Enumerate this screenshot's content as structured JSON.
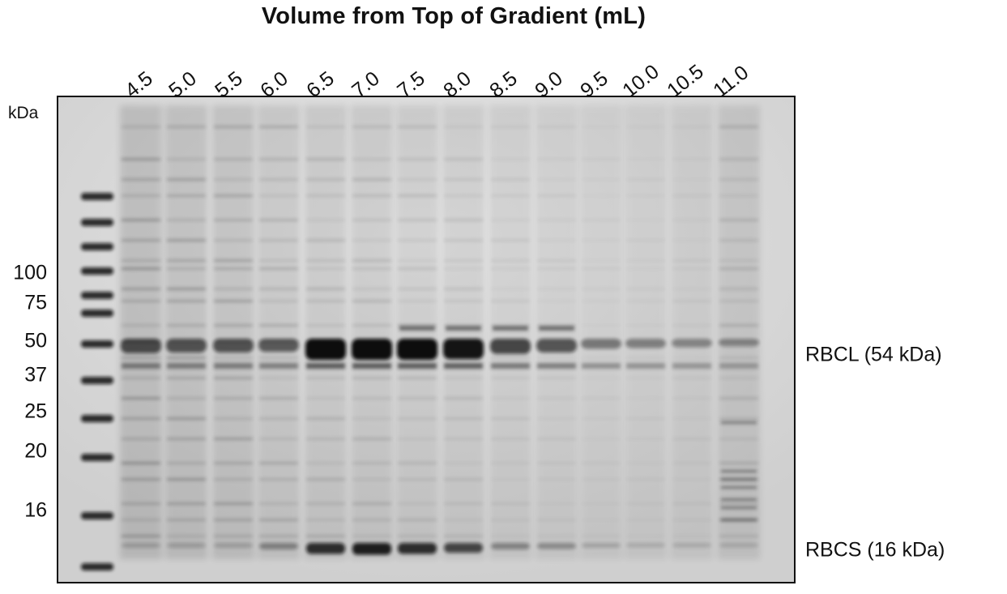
{
  "title": "Volume from Top of Gradient (mL)",
  "lanes": [
    "4.5",
    "5.0",
    "5.5",
    "6.0",
    "6.5",
    "7.0",
    "7.5",
    "8.0",
    "8.5",
    "9.0",
    "9.5",
    "10.0",
    "10.5",
    "11.0"
  ],
  "mw_unit": "kDa",
  "mw_markers": [
    "100",
    "75",
    "50",
    "37",
    "25",
    "20",
    "16"
  ],
  "bands": {
    "rbcl": "RBCL (54 kDa)",
    "rbcs": "RBCS (16 kDa)"
  },
  "colors": {
    "gel_background": "#d9d9d9",
    "band": "#1a1a1a"
  }
}
